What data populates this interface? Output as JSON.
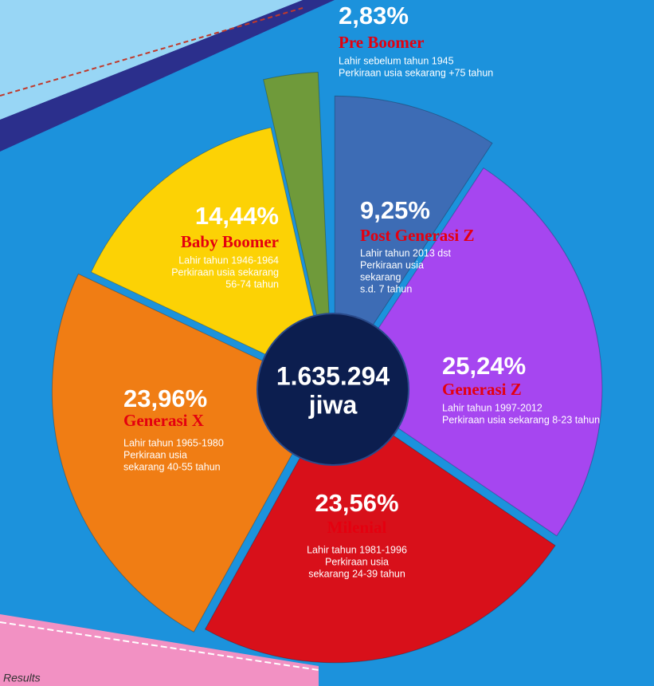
{
  "chart_data": {
    "type": "pie",
    "categories": [
      "Post Generasi Z",
      "Generasi Z",
      "Milenial",
      "Generasi X",
      "Baby Boomer",
      "Pre Boomer"
    ],
    "values": [
      9.25,
      25.24,
      23.56,
      23.96,
      14.44,
      2.83
    ],
    "value_labels": [
      "9,25%",
      "25,24%",
      "23,56%",
      "23,96%",
      "14,44%",
      "2,83%"
    ],
    "colors": [
      "#3d6cb5",
      "#a646f0",
      "#d8101a",
      "#f07d14",
      "#fcd205",
      "#6f9a3a"
    ],
    "descriptions": [
      [
        "Lahir tahun 2013 dst",
        "Perkiraan usia",
        "sekarang",
        "s.d. 7 tahun"
      ],
      [
        "Lahir tahun 1997-2012",
        "Perkiraan usia sekarang 8-23 tahun"
      ],
      [
        "Lahir tahun 1981-1996",
        "Perkiraan usia",
        "sekarang 24-39 tahun"
      ],
      [
        "Lahir tahun 1965-1980",
        "Perkiraan usia",
        "sekarang 40-55 tahun"
      ],
      [
        "Lahir tahun 1946-1964",
        "Perkiraan usia sekarang",
        "56-74 tahun"
      ],
      [
        "Lahir sebelum tahun 1945",
        "Perkiraan usia sekarang +75 tahun"
      ]
    ],
    "total_label": "1.635.294",
    "unit_label": "jiwa"
  },
  "footer": "Results"
}
